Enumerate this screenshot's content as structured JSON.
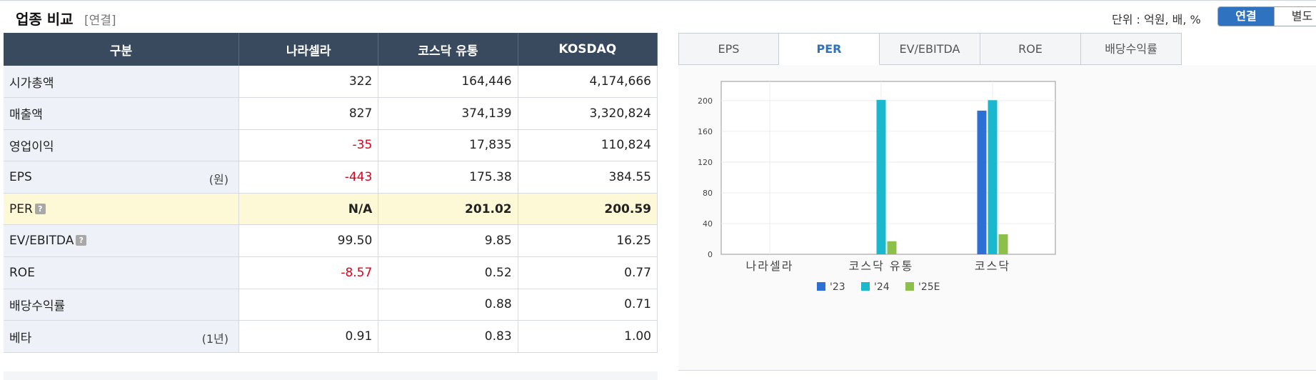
{
  "header": {
    "title": "업종 비교",
    "subtitle": "[연결]",
    "unit_label": "단위 : 억원, 배, %",
    "toggle": {
      "active": "연결",
      "inactive": "별도"
    }
  },
  "table": {
    "headers": [
      "구분",
      "나라셀라",
      "코스닥 유통",
      "KOSDAQ"
    ],
    "rows": [
      {
        "label": "시가총액",
        "sub": "",
        "help": false,
        "values": [
          "322",
          "164,446",
          "4,174,666"
        ]
      },
      {
        "label": "매출액",
        "sub": "",
        "help": false,
        "values": [
          "827",
          "374,139",
          "3,320,824"
        ]
      },
      {
        "label": "영업이익",
        "sub": "",
        "help": false,
        "values": [
          "-35",
          "17,835",
          "110,824"
        ]
      },
      {
        "label": "EPS",
        "sub": "(원)",
        "help": false,
        "values": [
          "-443",
          "175.38",
          "384.55"
        ]
      },
      {
        "label": "PER",
        "sub": "",
        "help": true,
        "highlight": true,
        "values": [
          "N/A",
          "201.02",
          "200.59"
        ]
      },
      {
        "label": "EV/EBITDA",
        "sub": "",
        "help": true,
        "values": [
          "99.50",
          "9.85",
          "16.25"
        ]
      },
      {
        "label": "ROE",
        "sub": "",
        "help": false,
        "values": [
          "-8.57",
          "0.52",
          "0.77"
        ]
      },
      {
        "label": "배당수익률",
        "sub": "",
        "help": false,
        "values": [
          "",
          "0.88",
          "0.71"
        ]
      },
      {
        "label": "베타",
        "sub": "(1년)",
        "help": false,
        "values": [
          "0.91",
          "0.83",
          "1.00"
        ]
      }
    ],
    "help_glyph": "?"
  },
  "tabs": [
    "EPS",
    "PER",
    "EV/EBITDA",
    "ROE",
    "배당수익률"
  ],
  "active_tab": "PER",
  "colors": {
    "accent": "#2f73c0",
    "negative": "#e0001a",
    "header_bg": "#3a4a5e"
  },
  "chart_data": {
    "type": "bar",
    "categories": [
      "나라셀라",
      "코스닥 유통",
      "코스닥"
    ],
    "series": [
      {
        "name": "'23",
        "color": "#2e6fd6",
        "values": [
          null,
          null,
          187
        ]
      },
      {
        "name": "'24",
        "color": "#19b8cc",
        "values": [
          null,
          201.02,
          200.59
        ]
      },
      {
        "name": "'25E",
        "color": "#8cc04a",
        "values": [
          null,
          17,
          26
        ]
      }
    ],
    "yticks": [
      0,
      40,
      80,
      120,
      160,
      200
    ],
    "ylim": [
      0,
      225
    ],
    "grid": true,
    "legend": "bottom"
  }
}
